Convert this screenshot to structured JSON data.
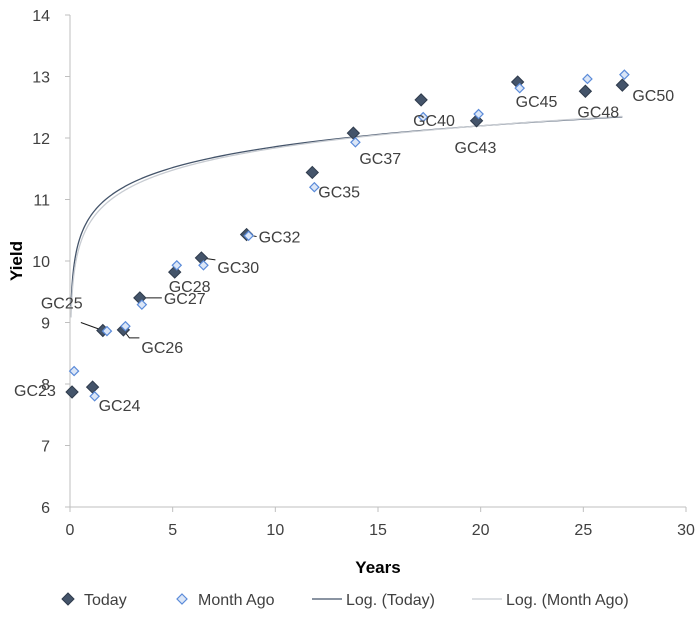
{
  "chart_data": {
    "type": "scatter",
    "title": "",
    "xlabel": "Years",
    "ylabel": "Yield",
    "xlim": [
      0,
      30
    ],
    "ylim": [
      6,
      14
    ],
    "xticks": [
      "0",
      "5",
      "10",
      "15",
      "20",
      "25",
      "30"
    ],
    "yticks": [
      "6",
      "7",
      "8",
      "9",
      "10",
      "11",
      "12",
      "13",
      "14"
    ],
    "grid": false,
    "legend_position": "bottom",
    "series": [
      {
        "name": "Today",
        "marker": "diamond-filled",
        "color": "#44546a",
        "points": [
          {
            "x": 0.1,
            "y": 7.87
          },
          {
            "x": 1.1,
            "y": 7.95
          },
          {
            "x": 1.6,
            "y": 8.87
          },
          {
            "x": 2.6,
            "y": 8.88
          },
          {
            "x": 3.4,
            "y": 9.4
          },
          {
            "x": 5.1,
            "y": 9.82
          },
          {
            "x": 6.4,
            "y": 10.05
          },
          {
            "x": 8.6,
            "y": 10.43
          },
          {
            "x": 11.8,
            "y": 11.44
          },
          {
            "x": 13.8,
            "y": 12.08
          },
          {
            "x": 17.1,
            "y": 12.62
          },
          {
            "x": 19.8,
            "y": 12.28
          },
          {
            "x": 21.8,
            "y": 12.91
          },
          {
            "x": 25.1,
            "y": 12.76
          },
          {
            "x": 26.9,
            "y": 12.86
          }
        ]
      },
      {
        "name": "Month Ago",
        "marker": "diamond-open",
        "color": "#5b8bd9",
        "points": [
          {
            "x": 0.2,
            "y": 8.21
          },
          {
            "x": 1.2,
            "y": 7.8
          },
          {
            "x": 1.8,
            "y": 8.86
          },
          {
            "x": 2.7,
            "y": 8.94
          },
          {
            "x": 3.5,
            "y": 9.29
          },
          {
            "x": 5.2,
            "y": 9.93
          },
          {
            "x": 6.5,
            "y": 9.93
          },
          {
            "x": 8.7,
            "y": 10.41
          },
          {
            "x": 11.9,
            "y": 11.2
          },
          {
            "x": 13.9,
            "y": 11.93
          },
          {
            "x": 17.2,
            "y": 12.34
          },
          {
            "x": 19.9,
            "y": 12.39
          },
          {
            "x": 21.9,
            "y": 12.81
          },
          {
            "x": 25.2,
            "y": 12.96
          },
          {
            "x": 27.0,
            "y": 13.03
          }
        ]
      },
      {
        "name": "Log. (Today)",
        "type": "trendline-log",
        "color": "#44546a",
        "coefficients": {
          "a": 10.73,
          "b": 0.49
        },
        "x_range": [
          0.05,
          26.9
        ]
      },
      {
        "name": "Log. (Month Ago)",
        "type": "trendline-log",
        "color": "#c8ccd2",
        "coefficients": {
          "a": 10.64,
          "b": 0.52
        },
        "x_range": [
          0.05,
          26.9
        ]
      }
    ],
    "point_labels": [
      {
        "text": "GC23",
        "x": 0.1,
        "y": 7.87
      },
      {
        "text": "GC24",
        "x": 1.1,
        "y": 7.95
      },
      {
        "text": "GC25",
        "x": 1.6,
        "y": 8.87
      },
      {
        "text": "GC26",
        "x": 2.6,
        "y": 8.88
      },
      {
        "text": "GC27",
        "x": 3.4,
        "y": 9.4
      },
      {
        "text": "GC28",
        "x": 5.1,
        "y": 9.82
      },
      {
        "text": "GC30",
        "x": 6.4,
        "y": 10.05
      },
      {
        "text": "GC32",
        "x": 8.6,
        "y": 10.43
      },
      {
        "text": "GC35",
        "x": 11.8,
        "y": 11.44
      },
      {
        "text": "GC37",
        "x": 13.8,
        "y": 12.08
      },
      {
        "text": "GC40",
        "x": 17.1,
        "y": 12.62
      },
      {
        "text": "GC43",
        "x": 19.8,
        "y": 12.28
      },
      {
        "text": "GC45",
        "x": 21.8,
        "y": 12.91
      },
      {
        "text": "GC48",
        "x": 25.1,
        "y": 12.76
      },
      {
        "text": "GC50",
        "x": 26.9,
        "y": 12.86
      }
    ]
  }
}
